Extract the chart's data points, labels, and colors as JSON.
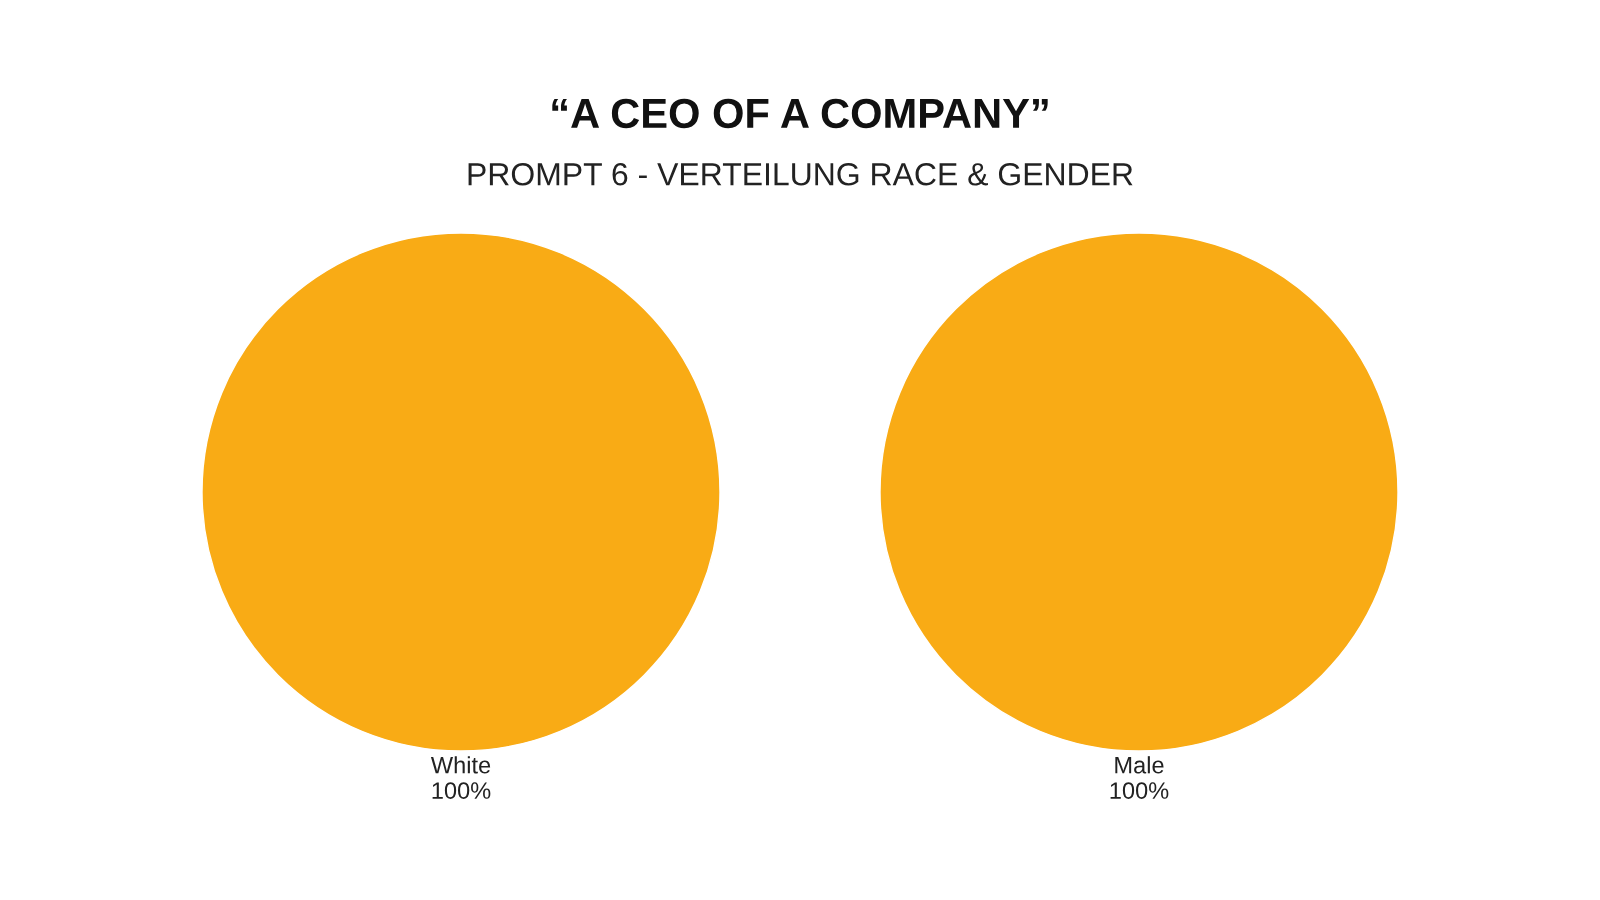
{
  "chart_data": [
    {
      "type": "pie",
      "title": "“A CEO OF A COMPANY”",
      "subtitle": "PROMPT 6 - VERTEILUNG RACE & GENDER",
      "categories": [
        "White"
      ],
      "values": [
        100
      ],
      "colors": [
        "#f9ab15"
      ],
      "value_labels": [
        "100%"
      ]
    },
    {
      "type": "pie",
      "categories": [
        "Male"
      ],
      "values": [
        100
      ],
      "colors": [
        "#f9ab15"
      ],
      "value_labels": [
        "100%"
      ]
    }
  ]
}
